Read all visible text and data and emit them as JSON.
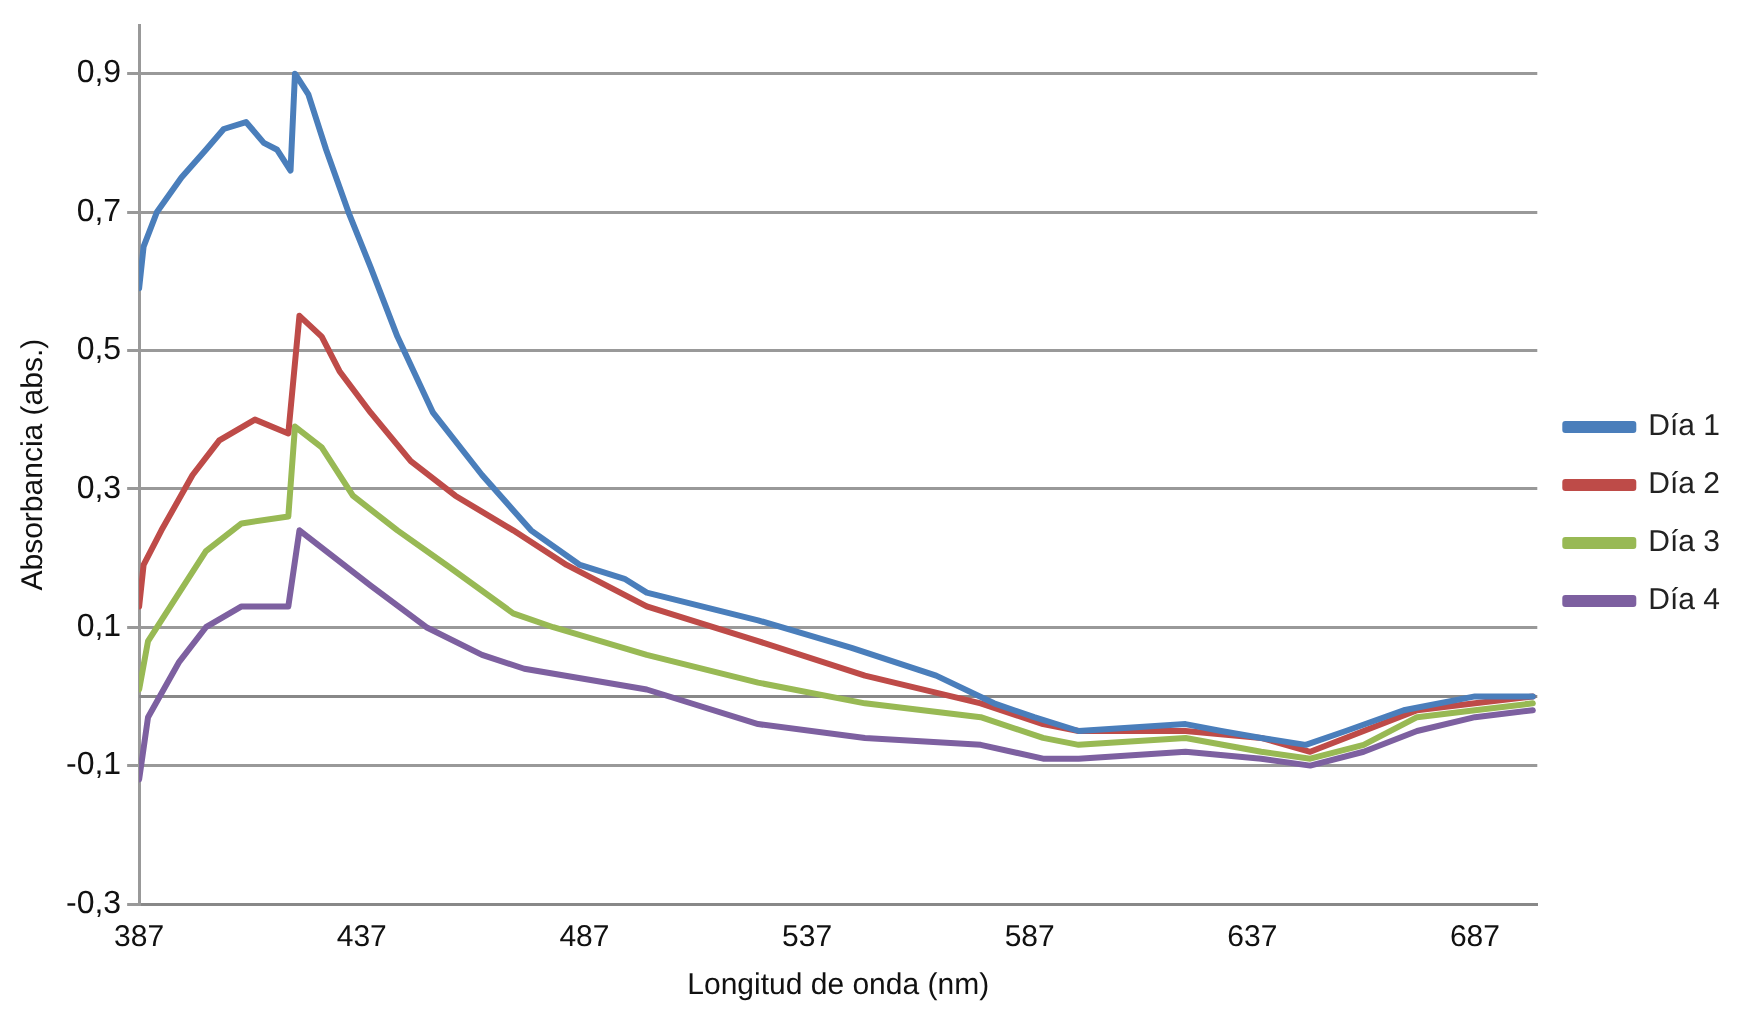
{
  "chart_data": {
    "type": "line",
    "xlabel": "Longitud de onda (nm)",
    "ylabel": "Absorbancia (abs.)",
    "xlim": [
      387,
      701
    ],
    "xticks": [
      387,
      437,
      487,
      537,
      587,
      637,
      687
    ],
    "ylim": [
      -0.3,
      0.97
    ],
    "yticks": [
      {
        "value": -0.3,
        "label": "-0,3"
      },
      {
        "value": -0.1,
        "label": "-0,1"
      },
      {
        "value": 0.1,
        "label": "0,1"
      },
      {
        "value": 0.3,
        "label": "0,3"
      },
      {
        "value": 0.5,
        "label": "0,5"
      },
      {
        "value": 0.7,
        "label": "0,7"
      },
      {
        "value": 0.9,
        "label": "0,9"
      }
    ],
    "grid": "y",
    "legend": "right",
    "ref_lines": [
      {
        "axis": "y",
        "value": 0,
        "color": "#888888"
      }
    ],
    "marker": "none",
    "line_style": "solid",
    "series": [
      {
        "name": "Día 1",
        "color": "#4a7ebb",
        "x": [
          387,
          388,
          391,
          396.5,
          402,
          406,
          411,
          415,
          418,
          421,
          422,
          425,
          429,
          434,
          439,
          445,
          453,
          464,
          475,
          486,
          496,
          501,
          526,
          547,
          566,
          579,
          588,
          598,
          622,
          630,
          639,
          649,
          658,
          671,
          687,
          700
        ],
        "values": [
          0.59,
          0.65,
          0.7,
          0.75,
          0.79,
          0.82,
          0.83,
          0.8,
          0.79,
          0.76,
          0.9,
          0.87,
          0.79,
          0.7,
          0.62,
          0.52,
          0.41,
          0.32,
          0.24,
          0.19,
          0.17,
          0.15,
          0.11,
          0.07,
          0.03,
          -0.01,
          -0.03,
          -0.05,
          -0.04,
          -0.05,
          -0.06,
          -0.07,
          -0.05,
          -0.02,
          0.0,
          0.0
        ]
      },
      {
        "name": "Día 2",
        "color": "#be4b48",
        "x": [
          387,
          388,
          392,
          399,
          405,
          413,
          420.5,
          423,
          428,
          432,
          439,
          448,
          458,
          471,
          483,
          501,
          526,
          550,
          576,
          590,
          598,
          622,
          639,
          650,
          662,
          674,
          687,
          700
        ],
        "values": [
          0.13,
          0.19,
          0.24,
          0.32,
          0.37,
          0.4,
          0.38,
          0.55,
          0.52,
          0.47,
          0.41,
          0.34,
          0.29,
          0.24,
          0.19,
          0.13,
          0.08,
          0.03,
          -0.01,
          -0.04,
          -0.05,
          -0.05,
          -0.06,
          -0.08,
          -0.05,
          -0.02,
          -0.01,
          0.0
        ]
      },
      {
        "name": "Día 3",
        "color": "#98b954",
        "x": [
          387,
          389,
          396,
          402,
          410,
          420.5,
          422,
          428,
          435,
          445,
          456,
          471,
          480,
          501,
          526,
          550,
          576,
          590,
          598,
          622,
          639,
          650,
          662,
          674,
          687,
          700
        ],
        "values": [
          0.01,
          0.08,
          0.15,
          0.21,
          0.25,
          0.26,
          0.39,
          0.36,
          0.29,
          0.24,
          0.19,
          0.12,
          0.1,
          0.06,
          0.02,
          -0.01,
          -0.03,
          -0.06,
          -0.07,
          -0.06,
          -0.08,
          -0.09,
          -0.07,
          -0.03,
          -0.02,
          -0.01
        ]
      },
      {
        "name": "Día 4",
        "color": "#7d60a0",
        "x": [
          387,
          389,
          396,
          402,
          410,
          420.5,
          423,
          429,
          439,
          451.5,
          464,
          473.5,
          501,
          526,
          550,
          576,
          590,
          598,
          622,
          639,
          650,
          662,
          674,
          687,
          700
        ],
        "values": [
          -0.12,
          -0.03,
          0.05,
          0.1,
          0.13,
          0.13,
          0.24,
          0.21,
          0.16,
          0.1,
          0.06,
          0.04,
          0.01,
          -0.04,
          -0.06,
          -0.07,
          -0.09,
          -0.09,
          -0.08,
          -0.09,
          -0.1,
          -0.08,
          -0.05,
          -0.03,
          -0.02
        ]
      }
    ]
  }
}
